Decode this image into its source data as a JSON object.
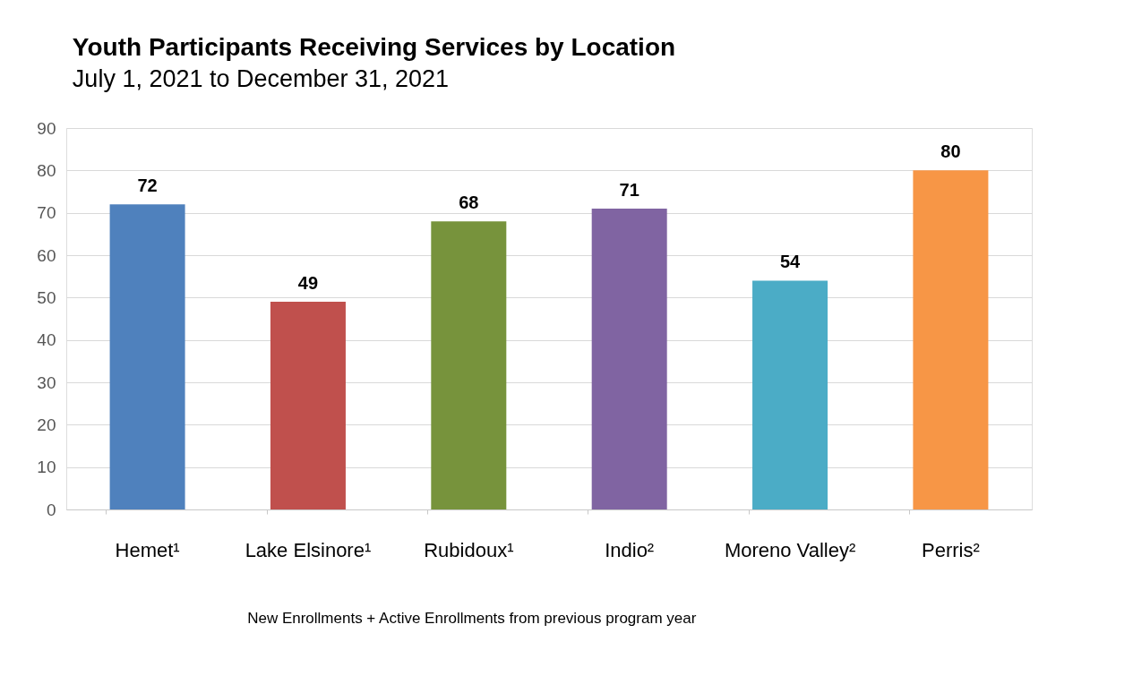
{
  "chart_data": {
    "type": "bar",
    "title": "Youth Participants Receiving Services by Location",
    "subtitle": "July 1, 2021 to December 31, 2021",
    "categories": [
      "Hemet¹",
      "Lake Elsinore¹",
      "Rubidoux¹",
      "Indio²",
      "Moreno Valley²",
      "Perris²"
    ],
    "values": [
      72,
      49,
      68,
      71,
      54,
      80
    ],
    "colors": [
      "#4f81bd",
      "#c0504d",
      "#77933c",
      "#8064a2",
      "#4bacc6",
      "#f79646"
    ],
    "ylim": [
      0,
      90
    ],
    "yticks": [
      0,
      10,
      20,
      30,
      40,
      50,
      60,
      70,
      80,
      90
    ],
    "grid": "y",
    "data_labels": true,
    "annotations": [
      "New Enrollments + Active Enrollments from previous program year"
    ]
  }
}
